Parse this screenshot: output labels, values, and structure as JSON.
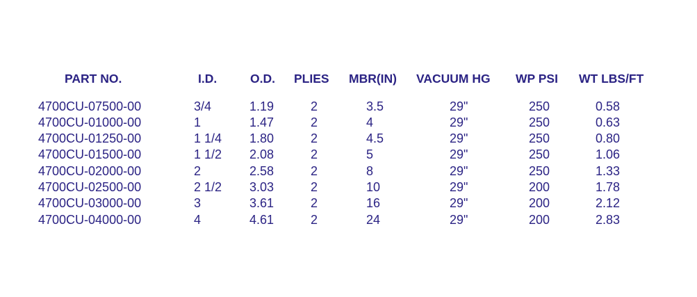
{
  "table": {
    "headers": [
      "PART NO.",
      "I.D.",
      "O.D.",
      "PLIES",
      "MBR(IN)",
      "VACUUM HG",
      "WP PSI",
      "WT LBS/FT"
    ],
    "rows": [
      [
        "4700CU-07500-00",
        "3/4",
        "1.19",
        "2",
        "3.5",
        "29\"",
        "250",
        "0.58"
      ],
      [
        "4700CU-01000-00",
        "1",
        "1.47",
        "2",
        "4",
        "29\"",
        "250",
        "0.63"
      ],
      [
        "4700CU-01250-00",
        "1 1/4",
        "1.80",
        "2",
        "4.5",
        "29\"",
        "250",
        "0.80"
      ],
      [
        "4700CU-01500-00",
        "1 1/2",
        "2.08",
        "2",
        "5",
        "29\"",
        "250",
        "1.06"
      ],
      [
        "4700CU-02000-00",
        "2",
        "2.58",
        "2",
        "8",
        "29\"",
        "250",
        "1.33"
      ],
      [
        "4700CU-02500-00",
        "2 1/2",
        "3.03",
        "2",
        "10",
        "29\"",
        "200",
        "1.78"
      ],
      [
        "4700CU-03000-00",
        "3",
        "3.61",
        "2",
        "16",
        "29\"",
        "200",
        "2.12"
      ],
      [
        "4700CU-04000-00",
        "4",
        "4.61",
        "2",
        "24",
        "29\"",
        "200",
        "2.83"
      ]
    ]
  },
  "colors": {
    "text": "#2b2384",
    "background": "#ffffff"
  }
}
